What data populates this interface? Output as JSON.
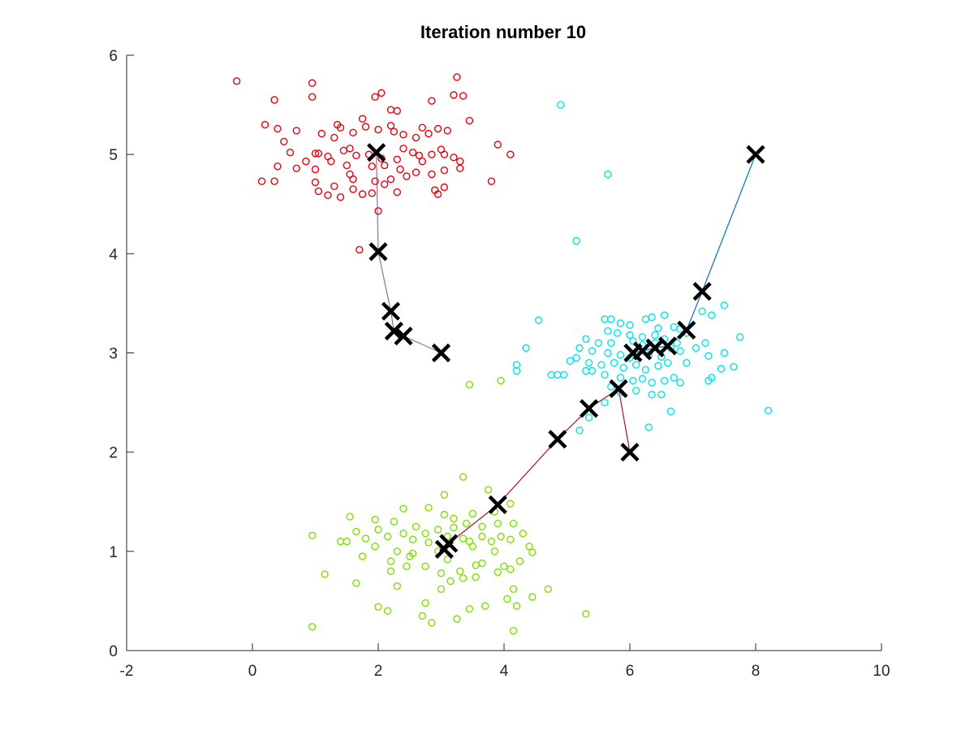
{
  "chart_data": {
    "type": "scatter",
    "title": "Iteration number 10",
    "xlabel": "",
    "ylabel": "",
    "xlim": [
      -2,
      10
    ],
    "ylim": [
      0,
      6
    ],
    "xticks": [
      "-2",
      "0",
      "2",
      "4",
      "6",
      "8",
      "10"
    ],
    "yticks": [
      "0",
      "1",
      "2",
      "3",
      "4",
      "5",
      "6"
    ],
    "grid": false,
    "legend": "none",
    "series": [
      {
        "color": "#e8000b",
        "marker": "circle",
        "points": [
          [
            -0.25,
            5.74
          ],
          [
            0.35,
            5.55
          ],
          [
            0.95,
            5.72
          ],
          [
            0.95,
            5.58
          ],
          [
            1.95,
            5.58
          ],
          [
            2.05,
            5.62
          ],
          [
            2.85,
            5.54
          ],
          [
            3.25,
            5.78
          ],
          [
            3.35,
            5.59
          ],
          [
            3.2,
            5.6
          ],
          [
            2.2,
            5.45
          ],
          [
            2.3,
            5.44
          ],
          [
            1.75,
            5.36
          ],
          [
            0.2,
            5.3
          ],
          [
            0.4,
            5.26
          ],
          [
            0.7,
            5.24
          ],
          [
            1.1,
            5.21
          ],
          [
            1.3,
            5.17
          ],
          [
            1.4,
            5.27
          ],
          [
            1.6,
            5.22
          ],
          [
            1.8,
            5.28
          ],
          [
            2.0,
            5.25
          ],
          [
            2.2,
            5.29
          ],
          [
            2.25,
            5.23
          ],
          [
            2.4,
            5.2
          ],
          [
            2.6,
            5.17
          ],
          [
            2.7,
            5.27
          ],
          [
            2.8,
            5.21
          ],
          [
            2.95,
            5.26
          ],
          [
            3.1,
            5.24
          ],
          [
            3.45,
            5.34
          ],
          [
            1.35,
            5.3
          ],
          [
            0.5,
            5.13
          ],
          [
            0.6,
            5.02
          ],
          [
            1.0,
            5.01
          ],
          [
            1.05,
            5.01
          ],
          [
            1.2,
            4.98
          ],
          [
            1.45,
            5.04
          ],
          [
            1.55,
            5.06
          ],
          [
            1.65,
            4.99
          ],
          [
            1.85,
            5.0
          ],
          [
            2.05,
            4.96
          ],
          [
            2.3,
            4.95
          ],
          [
            2.4,
            5.06
          ],
          [
            2.55,
            5.02
          ],
          [
            2.65,
            4.99
          ],
          [
            2.7,
            4.93
          ],
          [
            2.85,
            5.0
          ],
          [
            3.0,
            5.05
          ],
          [
            3.05,
            5.0
          ],
          [
            3.2,
            4.97
          ],
          [
            3.3,
            4.93
          ],
          [
            3.9,
            5.1
          ],
          [
            4.1,
            5.0
          ],
          [
            0.4,
            4.88
          ],
          [
            0.7,
            4.86
          ],
          [
            0.85,
            4.93
          ],
          [
            1.0,
            4.85
          ],
          [
            1.25,
            4.93
          ],
          [
            1.5,
            4.89
          ],
          [
            1.9,
            4.88
          ],
          [
            2.1,
            4.89
          ],
          [
            2.35,
            4.85
          ],
          [
            2.6,
            4.82
          ],
          [
            2.85,
            4.8
          ],
          [
            3.05,
            4.84
          ],
          [
            3.3,
            4.86
          ],
          [
            0.15,
            4.73
          ],
          [
            0.35,
            4.73
          ],
          [
            1.0,
            4.72
          ],
          [
            1.3,
            4.68
          ],
          [
            1.55,
            4.8
          ],
          [
            1.6,
            4.75
          ],
          [
            1.95,
            4.73
          ],
          [
            2.2,
            4.75
          ],
          [
            2.45,
            4.78
          ],
          [
            2.9,
            4.64
          ],
          [
            3.05,
            4.67
          ],
          [
            3.8,
            4.73
          ],
          [
            1.05,
            4.63
          ],
          [
            1.2,
            4.59
          ],
          [
            1.4,
            4.57
          ],
          [
            1.6,
            4.65
          ],
          [
            1.75,
            4.6
          ],
          [
            1.9,
            4.61
          ],
          [
            2.1,
            4.7
          ],
          [
            2.3,
            4.62
          ],
          [
            2.95,
            4.6
          ],
          [
            2.0,
            4.43
          ],
          [
            1.7,
            4.04
          ]
        ]
      },
      {
        "color": "#00e6e6",
        "marker": "circle",
        "points": [
          [
            4.9,
            5.5
          ],
          [
            5.65,
            4.8
          ],
          [
            5.15,
            4.13
          ],
          [
            4.55,
            3.33
          ],
          [
            7.5,
            3.48
          ],
          [
            7.15,
            3.42
          ],
          [
            7.3,
            3.38
          ],
          [
            6.55,
            3.38
          ],
          [
            6.35,
            3.36
          ],
          [
            6.25,
            3.34
          ],
          [
            5.6,
            3.34
          ],
          [
            5.7,
            3.34
          ],
          [
            5.85,
            3.3
          ],
          [
            6.0,
            3.28
          ],
          [
            6.45,
            3.25
          ],
          [
            6.7,
            3.26
          ],
          [
            6.8,
            3.24
          ],
          [
            6.9,
            3.2
          ],
          [
            5.65,
            3.22
          ],
          [
            5.8,
            3.2
          ],
          [
            6.0,
            3.18
          ],
          [
            6.2,
            3.16
          ],
          [
            6.4,
            3.18
          ],
          [
            5.3,
            3.14
          ],
          [
            5.5,
            3.1
          ],
          [
            5.7,
            3.1
          ],
          [
            6.05,
            3.12
          ],
          [
            6.2,
            3.08
          ],
          [
            6.4,
            3.1
          ],
          [
            6.55,
            3.14
          ],
          [
            6.75,
            3.1
          ],
          [
            7.05,
            3.05
          ],
          [
            7.2,
            3.1
          ],
          [
            7.5,
            3.0
          ],
          [
            7.75,
            3.16
          ],
          [
            8.2,
            2.42
          ],
          [
            4.35,
            3.05
          ],
          [
            5.2,
            3.05
          ],
          [
            5.4,
            3.02
          ],
          [
            5.65,
            3.0
          ],
          [
            5.85,
            2.98
          ],
          [
            6.0,
            2.95
          ],
          [
            6.3,
            2.98
          ],
          [
            6.5,
            2.96
          ],
          [
            6.65,
            3.05
          ],
          [
            6.8,
            3.02
          ],
          [
            7.25,
            2.97
          ],
          [
            4.2,
            2.88
          ],
          [
            4.2,
            2.82
          ],
          [
            5.05,
            2.92
          ],
          [
            5.15,
            2.95
          ],
          [
            5.35,
            2.9
          ],
          [
            5.55,
            2.88
          ],
          [
            5.75,
            2.9
          ],
          [
            5.9,
            2.85
          ],
          [
            6.1,
            2.88
          ],
          [
            6.25,
            2.83
          ],
          [
            6.45,
            2.87
          ],
          [
            6.6,
            2.9
          ],
          [
            6.9,
            2.9
          ],
          [
            7.45,
            2.84
          ],
          [
            7.65,
            2.86
          ],
          [
            4.75,
            2.78
          ],
          [
            4.85,
            2.78
          ],
          [
            4.95,
            2.78
          ],
          [
            5.3,
            2.82
          ],
          [
            5.4,
            2.82
          ],
          [
            5.6,
            2.78
          ],
          [
            5.85,
            2.75
          ],
          [
            6.05,
            2.72
          ],
          [
            6.2,
            2.74
          ],
          [
            6.35,
            2.7
          ],
          [
            6.55,
            2.72
          ],
          [
            6.7,
            2.75
          ],
          [
            7.25,
            2.72
          ],
          [
            7.3,
            2.75
          ],
          [
            5.7,
            2.66
          ],
          [
            5.85,
            2.6
          ],
          [
            6.1,
            2.62
          ],
          [
            6.35,
            2.58
          ],
          [
            6.5,
            2.58
          ],
          [
            5.6,
            2.5
          ],
          [
            5.35,
            2.35
          ],
          [
            5.2,
            2.22
          ],
          [
            6.3,
            2.25
          ],
          [
            6.65,
            2.41
          ],
          [
            6.8,
            2.7
          ]
        ]
      },
      {
        "color": "#7ee000",
        "marker": "circle",
        "points": [
          [
            3.45,
            2.68
          ],
          [
            3.95,
            2.72
          ],
          [
            3.35,
            1.75
          ],
          [
            3.75,
            1.62
          ],
          [
            3.05,
            1.57
          ],
          [
            4.1,
            1.48
          ],
          [
            1.55,
            1.35
          ],
          [
            1.95,
            1.32
          ],
          [
            2.4,
            1.43
          ],
          [
            2.8,
            1.44
          ],
          [
            3.05,
            1.37
          ],
          [
            3.2,
            1.33
          ],
          [
            3.5,
            1.38
          ],
          [
            3.85,
            1.4
          ],
          [
            2.25,
            1.3
          ],
          [
            2.6,
            1.25
          ],
          [
            2.95,
            1.22
          ],
          [
            3.2,
            1.24
          ],
          [
            3.4,
            1.28
          ],
          [
            3.65,
            1.25
          ],
          [
            3.9,
            1.28
          ],
          [
            4.15,
            1.28
          ],
          [
            1.65,
            1.2
          ],
          [
            2.0,
            1.22
          ],
          [
            2.4,
            1.18
          ],
          [
            2.75,
            1.18
          ],
          [
            3.1,
            1.15
          ],
          [
            3.35,
            1.13
          ],
          [
            3.65,
            1.15
          ],
          [
            3.95,
            1.15
          ],
          [
            4.3,
            1.18
          ],
          [
            0.95,
            1.16
          ],
          [
            1.4,
            1.1
          ],
          [
            1.5,
            1.1
          ],
          [
            1.8,
            1.13
          ],
          [
            2.15,
            1.15
          ],
          [
            2.55,
            1.12
          ],
          [
            2.8,
            1.09
          ],
          [
            3.45,
            1.1
          ],
          [
            3.8,
            1.1
          ],
          [
            4.1,
            1.12
          ],
          [
            4.4,
            1.05
          ],
          [
            1.95,
            1.05
          ],
          [
            2.3,
            1.0
          ],
          [
            2.55,
            0.98
          ],
          [
            2.95,
            1.0
          ],
          [
            3.5,
            1.05
          ],
          [
            3.85,
            1.0
          ],
          [
            4.45,
            0.99
          ],
          [
            1.75,
            0.95
          ],
          [
            2.2,
            0.9
          ],
          [
            2.5,
            0.95
          ],
          [
            3.1,
            0.92
          ],
          [
            3.65,
            0.88
          ],
          [
            4.0,
            0.85
          ],
          [
            4.25,
            0.9
          ],
          [
            1.15,
            0.77
          ],
          [
            1.65,
            0.68
          ],
          [
            2.2,
            0.8
          ],
          [
            2.45,
            0.85
          ],
          [
            2.75,
            0.85
          ],
          [
            3.0,
            0.78
          ],
          [
            3.3,
            0.8
          ],
          [
            3.55,
            0.86
          ],
          [
            3.9,
            0.79
          ],
          [
            4.1,
            0.82
          ],
          [
            2.3,
            0.65
          ],
          [
            3.0,
            0.62
          ],
          [
            3.15,
            0.7
          ],
          [
            3.35,
            0.73
          ],
          [
            3.55,
            0.74
          ],
          [
            4.15,
            0.62
          ],
          [
            4.45,
            0.54
          ],
          [
            4.7,
            0.62
          ],
          [
            2.75,
            0.48
          ],
          [
            3.45,
            0.42
          ],
          [
            3.7,
            0.45
          ],
          [
            4.05,
            0.52
          ],
          [
            4.2,
            0.45
          ],
          [
            2.0,
            0.44
          ],
          [
            2.15,
            0.4
          ],
          [
            2.7,
            0.35
          ],
          [
            2.85,
            0.28
          ],
          [
            3.25,
            0.32
          ],
          [
            5.3,
            0.37
          ],
          [
            0.95,
            0.24
          ],
          [
            4.15,
            0.2
          ]
        ]
      },
      {
        "color": "#000000",
        "marker": "x",
        "points": [
          [
            3,
            3
          ],
          [
            2.4,
            3.17
          ],
          [
            2.25,
            3.22
          ],
          [
            2.2,
            3.42
          ],
          [
            2,
            4.02
          ],
          [
            1.97,
            5.02
          ],
          [
            6,
            2
          ],
          [
            5.82,
            2.64
          ],
          [
            5.35,
            2.44
          ],
          [
            4.85,
            2.13
          ],
          [
            3.9,
            1.47
          ],
          [
            3.12,
            1.08
          ],
          [
            3.05,
            1.02
          ],
          [
            8,
            5
          ],
          [
            7.15,
            3.62
          ],
          [
            6.9,
            3.23
          ],
          [
            6.6,
            3.07
          ],
          [
            6.4,
            3.05
          ],
          [
            6.2,
            3.02
          ],
          [
            6.05,
            3.0
          ]
        ]
      }
    ],
    "trajectories": [
      {
        "color": "#9b6b9e",
        "points": [
          [
            3,
            3
          ],
          [
            2.4,
            3.17
          ],
          [
            2.25,
            3.22
          ],
          [
            2.2,
            3.42
          ],
          [
            2,
            4.02
          ],
          [
            1.97,
            5.02
          ]
        ]
      },
      {
        "color": "#a2142f",
        "points": [
          [
            6,
            2
          ],
          [
            5.82,
            2.64
          ],
          [
            5.35,
            2.44
          ],
          [
            4.85,
            2.13
          ],
          [
            3.9,
            1.47
          ],
          [
            3.12,
            1.08
          ],
          [
            3.05,
            1.02
          ]
        ]
      },
      {
        "color": "#0072bd",
        "points": [
          [
            8,
            5
          ],
          [
            7.15,
            3.62
          ],
          [
            6.9,
            3.23
          ],
          [
            6.6,
            3.07
          ],
          [
            6.4,
            3.05
          ],
          [
            6.2,
            3.02
          ],
          [
            6.05,
            3.0
          ]
        ]
      }
    ]
  }
}
